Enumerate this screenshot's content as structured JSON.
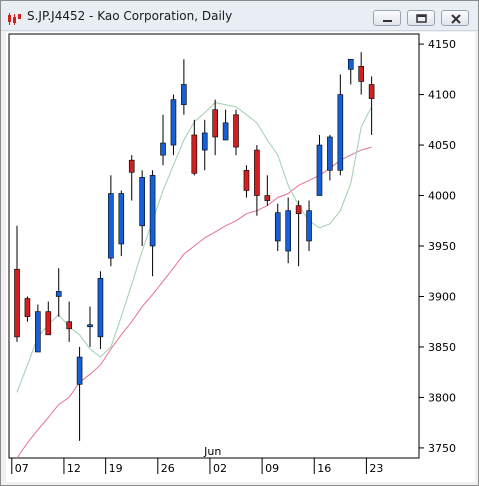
{
  "window": {
    "title": "S.JP.J4452 - Kao Corporation, Daily",
    "icons": [
      "candlestick-app-icon",
      "minimize-icon",
      "restore-icon",
      "close-icon"
    ]
  },
  "chart_data": {
    "type": "candlestick",
    "title": "S.JP.J4452 - Kao Corporation, Daily",
    "ylim": [
      3740,
      4160
    ],
    "y_ticks": [
      4150,
      4100,
      4050,
      4000,
      3950,
      3900,
      3850,
      3800,
      3750
    ],
    "x_ticks": [
      {
        "index": 0,
        "label": "07"
      },
      {
        "index": 5,
        "label": "12"
      },
      {
        "index": 9,
        "label": "19"
      },
      {
        "index": 14,
        "label": "26"
      },
      {
        "index": 19,
        "label": "02"
      },
      {
        "index": 24,
        "label": "09"
      },
      {
        "index": 29,
        "label": "16"
      },
      {
        "index": 34,
        "label": "23"
      }
    ],
    "month_label": {
      "index": 19,
      "label": "Jun"
    },
    "colors": {
      "up": "#1560d8",
      "down": "#d21f1f",
      "wick": "#000000",
      "ma_fast": "#9fd0ae",
      "ma_slow": "#e8728e"
    },
    "candles": [
      {
        "o": 3927,
        "h": 3970,
        "l": 3855,
        "c": 3860
      },
      {
        "o": 3898,
        "h": 3900,
        "l": 3875,
        "c": 3880
      },
      {
        "o": 3845,
        "h": 3892,
        "l": 3845,
        "c": 3885
      },
      {
        "o": 3885,
        "h": 3895,
        "l": 3862,
        "c": 3862
      },
      {
        "o": 3900,
        "h": 3928,
        "l": 3880,
        "c": 3905
      },
      {
        "o": 3875,
        "h": 3895,
        "l": 3855,
        "c": 3868
      },
      {
        "o": 3813,
        "h": 3850,
        "l": 3757,
        "c": 3840
      },
      {
        "o": 3870,
        "h": 3890,
        "l": 3850,
        "c": 3872
      },
      {
        "o": 3860,
        "h": 3925,
        "l": 3848,
        "c": 3918
      },
      {
        "o": 3938,
        "h": 4020,
        "l": 3930,
        "c": 4002
      },
      {
        "o": 3952,
        "h": 4005,
        "l": 3940,
        "c": 4002
      },
      {
        "o": 4035,
        "h": 4040,
        "l": 3995,
        "c": 4023
      },
      {
        "o": 3970,
        "h": 4025,
        "l": 3950,
        "c": 4018
      },
      {
        "o": 3950,
        "h": 4025,
        "l": 3920,
        "c": 4020
      },
      {
        "o": 4040,
        "h": 4080,
        "l": 4030,
        "c": 4052
      },
      {
        "o": 4050,
        "h": 4100,
        "l": 4040,
        "c": 4095
      },
      {
        "o": 4090,
        "h": 4135,
        "l": 4080,
        "c": 4110
      },
      {
        "o": 4060,
        "h": 4075,
        "l": 4020,
        "c": 4022
      },
      {
        "o": 4045,
        "h": 4075,
        "l": 4025,
        "c": 4062
      },
      {
        "o": 4085,
        "h": 4095,
        "l": 4040,
        "c": 4058
      },
      {
        "o": 4055,
        "h": 4085,
        "l": 4055,
        "c": 4072
      },
      {
        "o": 4080,
        "h": 4085,
        "l": 4040,
        "c": 4048
      },
      {
        "o": 4025,
        "h": 4030,
        "l": 3998,
        "c": 4005
      },
      {
        "o": 4045,
        "h": 4050,
        "l": 3980,
        "c": 4000
      },
      {
        "o": 4000,
        "h": 4020,
        "l": 3990,
        "c": 3995
      },
      {
        "o": 3955,
        "h": 3992,
        "l": 3945,
        "c": 3983
      },
      {
        "o": 3945,
        "h": 3998,
        "l": 3933,
        "c": 3985
      },
      {
        "o": 3990,
        "h": 3995,
        "l": 3930,
        "c": 3982
      },
      {
        "o": 3955,
        "h": 3995,
        "l": 3945,
        "c": 3985
      },
      {
        "o": 4000,
        "h": 4060,
        "l": 4000,
        "c": 4050
      },
      {
        "o": 4025,
        "h": 4060,
        "l": 4015,
        "c": 4058
      },
      {
        "o": 4025,
        "h": 4120,
        "l": 4020,
        "c": 4100
      },
      {
        "o": 4125,
        "h": 4135,
        "l": 4110,
        "c": 4135
      },
      {
        "o": 4128,
        "h": 4142,
        "l": 4100,
        "c": 4113
      },
      {
        "o": 4110,
        "h": 4118,
        "l": 4060,
        "c": 4096
      }
    ],
    "ma_fast": [
      3805,
      3832,
      3860,
      3872,
      3882,
      3870,
      3862,
      3848,
      3840,
      3850,
      3880,
      3912,
      3945,
      3975,
      4005,
      4030,
      4055,
      4073,
      4082,
      4092,
      4090,
      4088,
      4080,
      4072,
      4055,
      4040,
      4010,
      3990,
      3975,
      3968,
      3972,
      3985,
      4012,
      4068,
      4088
    ],
    "ma_slow": [
      3740,
      3755,
      3768,
      3780,
      3793,
      3800,
      3815,
      3823,
      3832,
      3848,
      3862,
      3875,
      3890,
      3902,
      3915,
      3928,
      3942,
      3950,
      3958,
      3964,
      3970,
      3975,
      3982,
      3985,
      3990,
      3998,
      4002,
      4010,
      4015,
      4020,
      4027,
      4035,
      4040,
      4045,
      4048
    ]
  }
}
